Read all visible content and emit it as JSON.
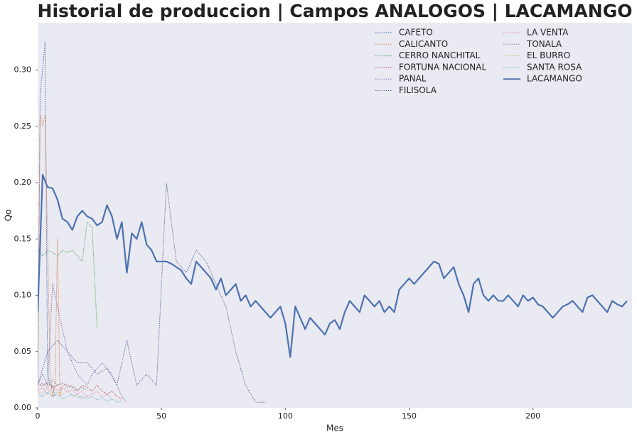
{
  "chart_data": {
    "type": "line",
    "title": "Historial de produccion | Campos ANALOGOS | LACAMANGO",
    "x_label": "Mes",
    "y_label": "Qo",
    "xlim": [
      0,
      240
    ],
    "ylim": [
      0,
      0.342
    ],
    "xticks": [
      0,
      50,
      100,
      150,
      200
    ],
    "yticks": [
      {
        "value": 0,
        "label": "0.00"
      },
      {
        "value": 0.05,
        "label": "0.05"
      },
      {
        "value": 0.1,
        "label": "0.10"
      },
      {
        "value": 0.15,
        "label": "0.15"
      },
      {
        "value": 0.2,
        "label": "0.20"
      },
      {
        "value": 0.25,
        "label": "0.25"
      },
      {
        "value": 0.3,
        "label": "0.30"
      }
    ],
    "grid": false,
    "legend": "upper right",
    "legend_columns": 2,
    "series": [
      {
        "name": "CAFETO",
        "color": "#4c72b0",
        "style": "dotted",
        "x": [
          0,
          1,
          2,
          3,
          4,
          5,
          6,
          7
        ],
        "values": [
          0.02,
          0.28,
          0.3,
          0.325,
          0.03,
          0.02,
          0.02,
          0.01
        ]
      },
      {
        "name": "CALICANTO",
        "color": "#dd8452",
        "style": "dotted",
        "x": [
          0,
          1,
          2,
          3,
          4,
          5,
          6,
          7,
          8,
          9,
          10
        ],
        "values": [
          0.01,
          0.26,
          0.25,
          0.26,
          0.15,
          0.03,
          0.01,
          0.02,
          0.15,
          0.01,
          0.02
        ]
      },
      {
        "name": "CERRO NANCHITAL",
        "color": "#55a868",
        "style": "dotted",
        "x": [
          0,
          2,
          4,
          6,
          8,
          10,
          12,
          14,
          16,
          18,
          20,
          22,
          24
        ],
        "values": [
          0.14,
          0.135,
          0.14,
          0.138,
          0.135,
          0.14,
          0.138,
          0.14,
          0.135,
          0.13,
          0.165,
          0.16,
          0.07
        ]
      },
      {
        "name": "FORTUNA NACIONAL",
        "color": "#c44e52",
        "style": "dotted",
        "x": [
          0,
          2,
          4,
          6,
          8,
          10,
          12,
          14,
          16,
          18,
          20,
          22,
          24,
          26,
          28,
          30,
          32,
          34
        ],
        "values": [
          0.02,
          0.02,
          0.022,
          0.018,
          0.02,
          0.022,
          0.02,
          0.018,
          0.015,
          0.02,
          0.018,
          0.015,
          0.02,
          0.015,
          0.012,
          0.015,
          0.01,
          0.008
        ]
      },
      {
        "name": "PANAL",
        "color": "#8172b3",
        "style": "dotted",
        "x": [
          0,
          2,
          4,
          6,
          8,
          10,
          12,
          14,
          16,
          18,
          20,
          22,
          24,
          26,
          28,
          30,
          32,
          34,
          36
        ],
        "values": [
          0.02,
          0.03,
          0.02,
          0.11,
          0.09,
          0.07,
          0.05,
          0.04,
          0.03,
          0.025,
          0.02,
          0.03,
          0.035,
          0.04,
          0.035,
          0.03,
          0.02,
          0.01,
          0.005
        ]
      },
      {
        "name": "FILISOLA",
        "color": "#5a6e9a",
        "style": "dotted",
        "x": [
          0,
          4,
          8,
          12,
          16,
          20,
          24,
          28,
          32,
          36,
          40,
          44,
          48,
          52,
          56,
          60,
          64,
          68,
          72,
          76,
          80,
          84,
          88,
          92
        ],
        "values": [
          0.02,
          0.05,
          0.06,
          0.05,
          0.04,
          0.04,
          0.03,
          0.035,
          0.02,
          0.06,
          0.02,
          0.03,
          0.02,
          0.2,
          0.13,
          0.12,
          0.14,
          0.13,
          0.11,
          0.09,
          0.05,
          0.02,
          0.005,
          0.005
        ]
      },
      {
        "name": "LA VENTA",
        "color": "#da8bc3",
        "style": "dotted",
        "x": [
          0,
          2,
          4,
          6,
          8,
          10,
          12,
          14,
          16,
          18,
          20,
          22,
          24,
          26,
          28,
          30
        ],
        "values": [
          0.015,
          0.018,
          0.012,
          0.02,
          0.015,
          0.018,
          0.014,
          0.016,
          0.012,
          0.015,
          0.01,
          0.012,
          0.015,
          0.01,
          0.012,
          0.008
        ]
      },
      {
        "name": "TONALA",
        "color": "#8c8c8c",
        "style": "dotted",
        "x": [
          0,
          2,
          4,
          6,
          8,
          10,
          12,
          14,
          16,
          18,
          20
        ],
        "values": [
          0.02,
          0.022,
          0.018,
          0.025,
          0.02,
          0.022,
          0.018,
          0.02,
          0.016,
          0.018,
          0.015
        ]
      },
      {
        "name": "EL BURRO",
        "color": "#ccb974",
        "style": "dotted",
        "x": [
          0,
          2,
          4,
          6,
          8,
          10,
          12,
          14,
          16,
          18,
          20
        ],
        "values": [
          0.015,
          0.012,
          0.018,
          0.01,
          0.014,
          0.012,
          0.016,
          0.01,
          0.012,
          0.008,
          0.01
        ]
      },
      {
        "name": "SANTA ROSA",
        "color": "#64b5cd",
        "style": "dotted",
        "x": [
          0,
          2,
          4,
          6,
          8,
          10,
          12,
          14,
          16,
          18,
          20,
          22,
          24,
          26,
          28,
          30,
          32,
          34
        ],
        "values": [
          0.012,
          0.01,
          0.014,
          0.01,
          0.012,
          0.008,
          0.01,
          0.012,
          0.009,
          0.01,
          0.008,
          0.01,
          0.007,
          0.009,
          0.006,
          0.008,
          0.005,
          0.006
        ]
      },
      {
        "name": "LACAMANGO",
        "color": "#4c72b0",
        "style": "solid",
        "x": [
          0,
          2,
          4,
          6,
          8,
          10,
          12,
          14,
          16,
          18,
          20,
          22,
          24,
          26,
          28,
          30,
          32,
          34,
          36,
          38,
          40,
          42,
          44,
          46,
          48,
          50,
          52,
          54,
          56,
          58,
          60,
          62,
          64,
          66,
          68,
          70,
          72,
          74,
          76,
          78,
          80,
          82,
          84,
          86,
          88,
          90,
          92,
          94,
          96,
          98,
          100,
          102,
          104,
          106,
          108,
          110,
          112,
          114,
          116,
          118,
          120,
          122,
          124,
          126,
          128,
          130,
          132,
          134,
          136,
          138,
          140,
          142,
          144,
          146,
          148,
          150,
          152,
          154,
          156,
          158,
          160,
          162,
          164,
          166,
          168,
          170,
          172,
          174,
          176,
          178,
          180,
          182,
          184,
          186,
          188,
          190,
          192,
          194,
          196,
          198,
          200,
          202,
          204,
          206,
          208,
          210,
          212,
          214,
          216,
          218,
          220,
          222,
          224,
          226,
          228,
          230,
          232,
          234,
          236,
          238
        ],
        "values": [
          0.085,
          0.207,
          0.196,
          0.195,
          0.185,
          0.168,
          0.165,
          0.158,
          0.17,
          0.175,
          0.17,
          0.168,
          0.162,
          0.165,
          0.18,
          0.17,
          0.15,
          0.165,
          0.12,
          0.155,
          0.15,
          0.165,
          0.145,
          0.14,
          0.13,
          0.13,
          0.13,
          0.128,
          0.125,
          0.122,
          0.115,
          0.11,
          0.13,
          0.125,
          0.12,
          0.115,
          0.105,
          0.115,
          0.1,
          0.105,
          0.11,
          0.095,
          0.1,
          0.09,
          0.095,
          0.09,
          0.085,
          0.08,
          0.085,
          0.09,
          0.075,
          0.045,
          0.09,
          0.08,
          0.07,
          0.08,
          0.075,
          0.07,
          0.065,
          0.075,
          0.078,
          0.07,
          0.085,
          0.095,
          0.09,
          0.085,
          0.1,
          0.095,
          0.09,
          0.095,
          0.085,
          0.09,
          0.085,
          0.105,
          0.11,
          0.115,
          0.11,
          0.115,
          0.12,
          0.125,
          0.13,
          0.128,
          0.115,
          0.12,
          0.125,
          0.11,
          0.1,
          0.085,
          0.11,
          0.115,
          0.1,
          0.095,
          0.1,
          0.095,
          0.095,
          0.1,
          0.095,
          0.09,
          0.1,
          0.095,
          0.098,
          0.092,
          0.09,
          0.085,
          0.08,
          0.085,
          0.09,
          0.092,
          0.095,
          0.09,
          0.085,
          0.098,
          0.1,
          0.095,
          0.09,
          0.085,
          0.095,
          0.092,
          0.09,
          0.095
        ]
      }
    ]
  }
}
